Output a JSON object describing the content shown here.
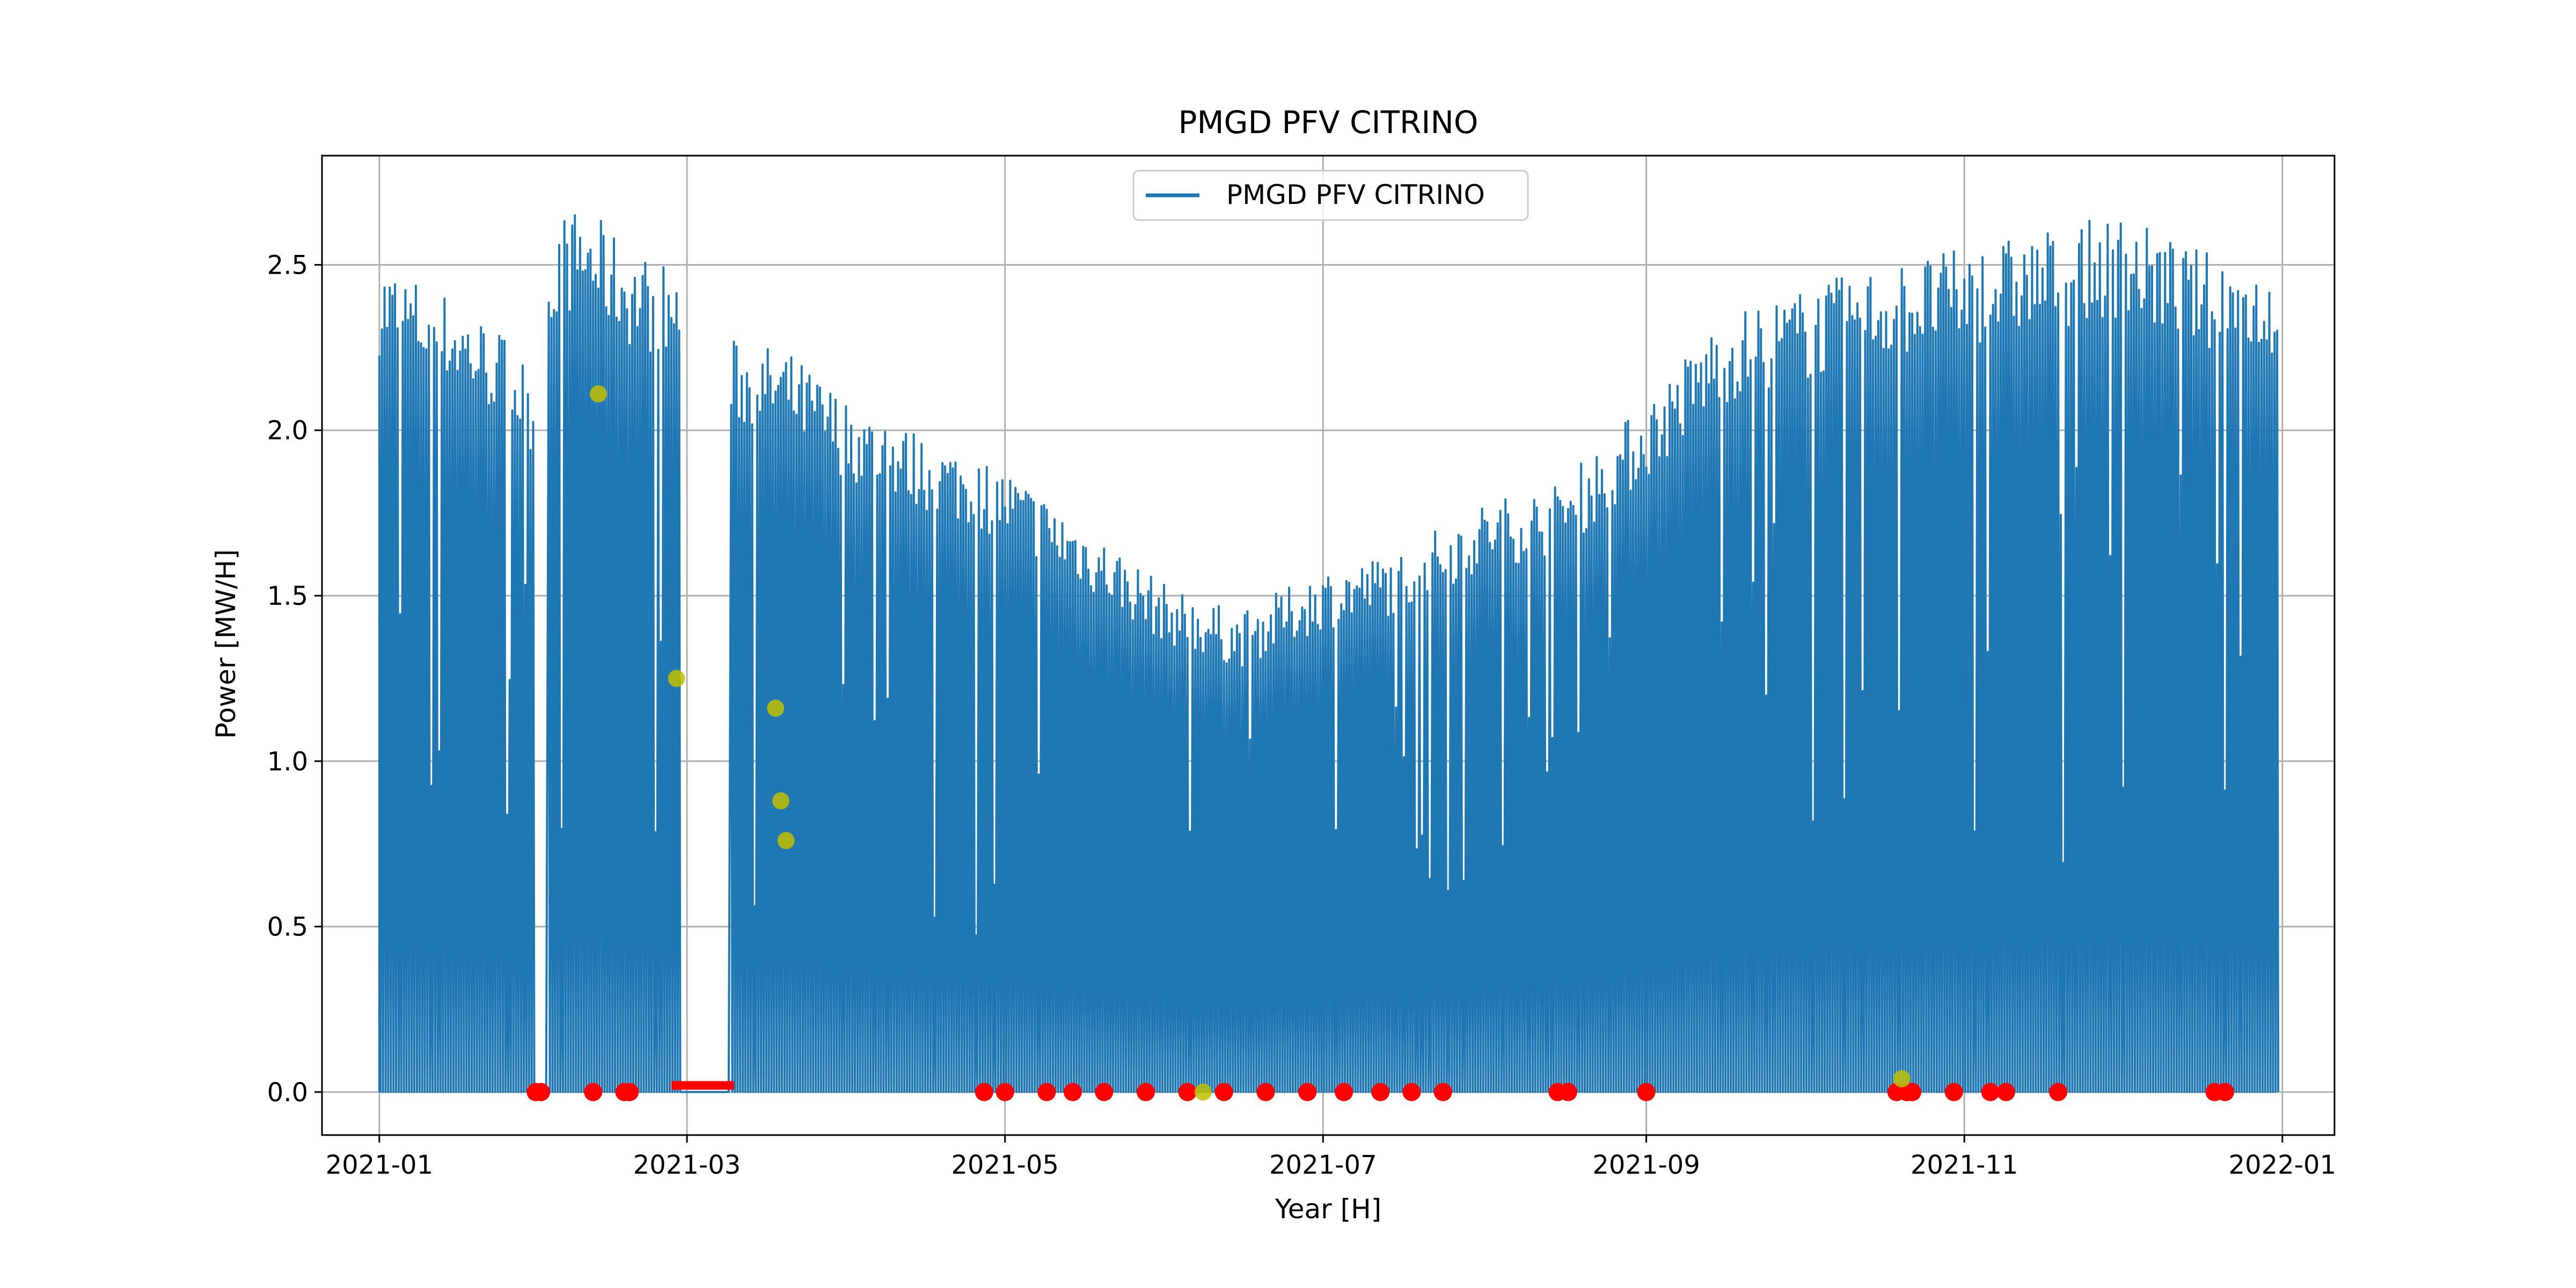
{
  "chart_data": {
    "type": "line",
    "title": "PMGD PFV CITRINO",
    "xlabel": "Year [H]",
    "ylabel": "Power [MW/H]",
    "xlim": [
      "2020-12-21",
      "2022-01-11"
    ],
    "ylim": [
      -0.13,
      2.83
    ],
    "x_ticks": [
      "2021-01",
      "2021-03",
      "2021-05",
      "2021-07",
      "2021-09",
      "2021-11",
      "2022-01"
    ],
    "y_ticks": [
      "0.0",
      "0.5",
      "1.0",
      "1.5",
      "2.0",
      "2.5"
    ],
    "grid": true,
    "legend": {
      "position": "top-center",
      "entries": [
        "PMGD PFV CITRINO"
      ]
    },
    "colors": {
      "series": "#1f77b4",
      "red_markers": "#ff0000",
      "yellow_markers": "#bfbf00",
      "grid": "#b0b0b0"
    },
    "series": [
      {
        "name": "PMGD PFV CITRINO",
        "type": "daily-peak-envelope",
        "x": [
          "2021-01-01",
          "2021-01-15",
          "2021-01-25",
          "2021-01-30",
          "2021-02-04",
          "2021-02-10",
          "2021-02-18",
          "2021-02-26",
          "2021-03-10",
          "2021-03-20",
          "2021-04-01",
          "2021-04-15",
          "2021-05-01",
          "2021-05-15",
          "2021-06-01",
          "2021-06-15",
          "2021-07-01",
          "2021-07-15",
          "2021-08-01",
          "2021-08-15",
          "2021-09-01",
          "2021-09-15",
          "2021-10-01",
          "2021-10-15",
          "2021-11-01",
          "2021-11-15",
          "2021-12-01",
          "2021-12-15",
          "2021-12-31"
        ],
        "y": [
          2.47,
          2.36,
          2.25,
          2.15,
          2.6,
          2.62,
          2.5,
          2.45,
          2.23,
          2.2,
          2.05,
          1.95,
          1.85,
          1.7,
          1.5,
          1.42,
          1.55,
          1.6,
          1.75,
          1.8,
          2.05,
          2.3,
          2.38,
          2.45,
          2.5,
          2.55,
          2.6,
          2.5,
          2.45
        ],
        "gaps": [
          [
            "2021-01-31",
            "2021-02-02"
          ],
          [
            "2021-02-28",
            "2021-03-09"
          ]
        ]
      },
      {
        "name": "red-markers",
        "type": "scatter",
        "x": [
          "2021-01-31",
          "2021-02-01",
          "2021-02-11",
          "2021-02-17",
          "2021-02-18",
          "2021-04-27",
          "2021-05-01",
          "2021-05-09",
          "2021-05-14",
          "2021-05-20",
          "2021-05-28",
          "2021-06-05",
          "2021-06-12",
          "2021-06-20",
          "2021-06-28",
          "2021-07-05",
          "2021-07-12",
          "2021-07-18",
          "2021-07-24",
          "2021-08-15",
          "2021-08-17",
          "2021-09-01",
          "2021-10-19",
          "2021-10-21",
          "2021-10-22",
          "2021-10-30",
          "2021-11-06",
          "2021-11-09",
          "2021-11-19",
          "2021-12-19",
          "2021-12-21"
        ],
        "y": [
          0,
          0,
          0,
          0,
          0,
          0,
          0,
          0,
          0,
          0,
          0,
          0,
          0,
          0,
          0,
          0,
          0,
          0,
          0,
          0,
          0,
          0,
          0,
          0,
          0,
          0,
          0,
          0,
          0,
          0,
          0
        ]
      },
      {
        "name": "yellow-markers",
        "type": "scatter",
        "x": [
          "2021-02-12",
          "2021-02-27",
          "2021-03-18",
          "2021-03-19",
          "2021-03-20",
          "2021-10-20",
          "2021-06-08"
        ],
        "y": [
          2.11,
          1.25,
          1.16,
          0.88,
          0.76,
          0.04,
          0.0
        ]
      }
    ],
    "red_segment": {
      "from": "2021-02-26",
      "to": "2021-03-10",
      "y": 0.02
    }
  }
}
